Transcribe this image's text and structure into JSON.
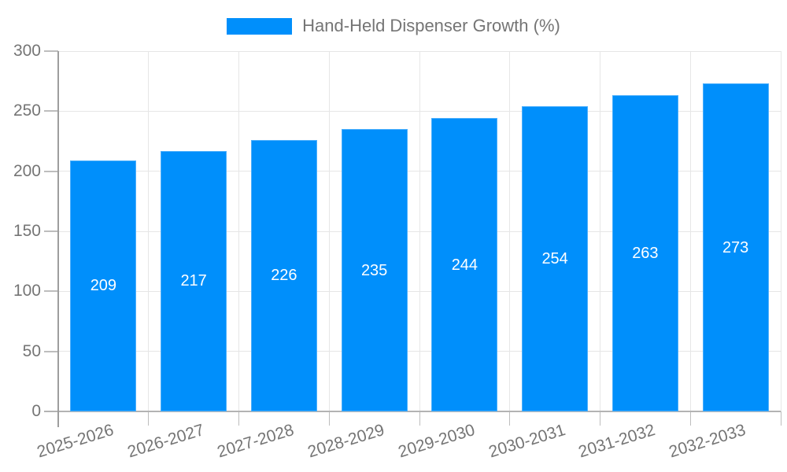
{
  "legend": {
    "label": "Hand-Held Dispenser Growth (%)"
  },
  "chart_data": {
    "type": "bar",
    "title": "",
    "categories": [
      "2025-2026",
      "2026-2027",
      "2027-2028",
      "2028-2029",
      "2029-2030",
      "2030-2031",
      "2031-2032",
      "2032-2033"
    ],
    "series": [
      {
        "name": "Hand-Held Dispenser Growth (%)",
        "values": [
          209,
          217,
          226,
          235,
          244,
          254,
          263,
          273
        ]
      }
    ],
    "xlabel": "",
    "ylabel": "",
    "ylim": [
      0,
      300
    ],
    "yticks": [
      0,
      50,
      100,
      150,
      200,
      250,
      300
    ],
    "grid": true,
    "legend_position": "top",
    "data_labels_inside_bars": true,
    "colors": {
      "bar": "#008ffb",
      "bar_edge": "rgba(255,255,255,0.3)",
      "bar_label": "#ffffff",
      "axis_text": "#757575",
      "gridline": "#e6e6e6",
      "axis_line": "#9e9e9e",
      "tick": "#bdbdbd",
      "baseline": "#b3b3b3",
      "background": "#ffffff"
    }
  }
}
